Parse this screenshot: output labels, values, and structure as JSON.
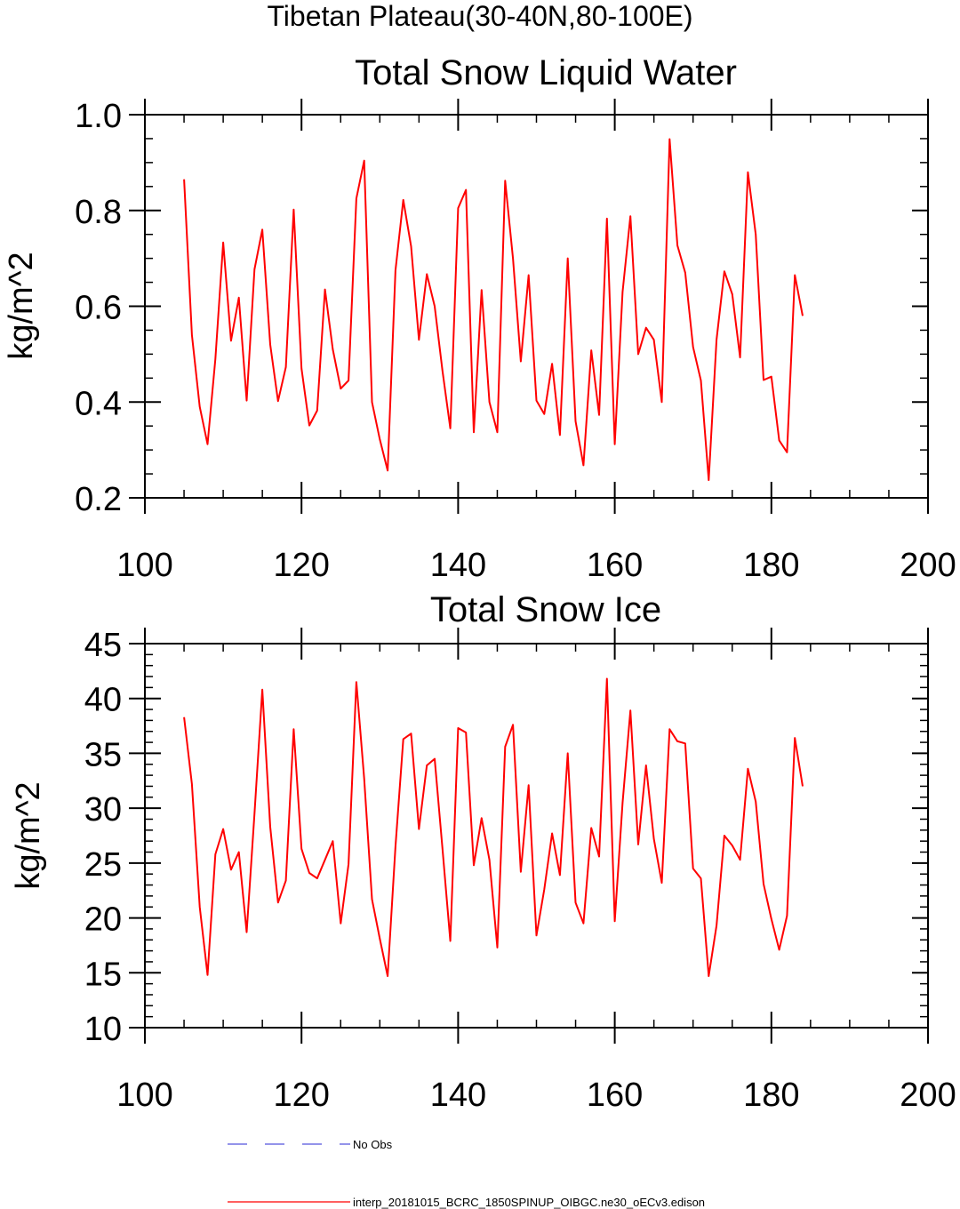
{
  "suptitle": "Tibetan Plateau(30-40N,80-100E)",
  "chart_data": [
    {
      "type": "line",
      "title": "Total Snow Liquid Water",
      "xlabel": "",
      "ylabel": "kg/m^2",
      "xlim": [
        100,
        200
      ],
      "ylim": [
        0.2,
        1.0
      ],
      "x_ticks": [
        100,
        120,
        140,
        160,
        180,
        200
      ],
      "y_ticks": [
        0.2,
        0.4,
        0.6,
        0.8,
        1.0
      ],
      "y_tick_labels": [
        "0.2",
        "0.4",
        "0.6",
        "0.8",
        "1.0"
      ],
      "grid": false,
      "x_start": 105,
      "x_step": 1,
      "series": [
        {
          "name": "interp_20181015_BCRC_1850SPINUP_OIBGC.ne30_oECv3.edison",
          "color": "#ff0000",
          "values": [
            0.865,
            0.54,
            0.39,
            0.312,
            0.49,
            0.733,
            0.528,
            0.618,
            0.403,
            0.677,
            0.76,
            0.52,
            0.402,
            0.473,
            0.802,
            0.47,
            0.351,
            0.382,
            0.635,
            0.51,
            0.428,
            0.445,
            0.825,
            0.904,
            0.4,
            0.322,
            0.257,
            0.675,
            0.822,
            0.725,
            0.53,
            0.667,
            0.6,
            0.465,
            0.345,
            0.805,
            0.843,
            0.337,
            0.634,
            0.4,
            0.337,
            0.862,
            0.7,
            0.485,
            0.665,
            0.403,
            0.375,
            0.48,
            0.331,
            0.7,
            0.36,
            0.268,
            0.508,
            0.373,
            0.783,
            0.312,
            0.63,
            0.788,
            0.5,
            0.555,
            0.53,
            0.4,
            0.949,
            0.727,
            0.67,
            0.515,
            0.445,
            0.237,
            0.53,
            0.673,
            0.625,
            0.493,
            0.88,
            0.75,
            0.446,
            0.453,
            0.32,
            0.295,
            0.665,
            0.58
          ]
        }
      ]
    },
    {
      "type": "line",
      "title": "Total Snow Ice",
      "xlabel": "",
      "ylabel": "kg/m^2",
      "xlim": [
        100,
        200
      ],
      "ylim": [
        10,
        45
      ],
      "x_ticks": [
        100,
        120,
        140,
        160,
        180,
        200
      ],
      "y_ticks": [
        10,
        15,
        20,
        25,
        30,
        35,
        40,
        45
      ],
      "y_tick_labels": [
        "10",
        "15",
        "20",
        "25",
        "30",
        "35",
        "40",
        "45"
      ],
      "grid": false,
      "x_start": 105,
      "x_step": 1,
      "series": [
        {
          "name": "interp_20181015_BCRC_1850SPINUP_OIBGC.ne30_oECv3.edison",
          "color": "#ff0000",
          "values": [
            38.3,
            32.2,
            21.0,
            14.8,
            25.8,
            28.1,
            24.4,
            26.0,
            18.7,
            29.5,
            40.8,
            28.3,
            21.4,
            23.4,
            37.2,
            26.3,
            24.1,
            23.6,
            25.3,
            27.0,
            19.5,
            24.9,
            41.5,
            32.7,
            21.7,
            18.1,
            14.7,
            26.5,
            36.3,
            36.8,
            28.1,
            33.9,
            34.5,
            26.3,
            17.9,
            37.3,
            36.9,
            24.8,
            29.1,
            25.3,
            17.3,
            35.6,
            37.6,
            24.2,
            32.1,
            18.4,
            22.6,
            27.7,
            23.9,
            35.0,
            21.4,
            19.5,
            28.2,
            25.6,
            41.8,
            19.7,
            30.5,
            38.9,
            26.7,
            33.9,
            27.2,
            23.2,
            37.2,
            36.1,
            35.9,
            24.5,
            23.6,
            14.7,
            19.3,
            27.5,
            26.6,
            25.3,
            33.6,
            30.6,
            23.1,
            19.9,
            17.1,
            20.2,
            36.4,
            32.0
          ]
        }
      ]
    }
  ],
  "legend": {
    "placement": "bottom",
    "entries": [
      {
        "label": "No Obs",
        "color": "#5555dd",
        "style": "dashed"
      },
      {
        "label": "interp_20181015_BCRC_1850SPINUP_OIBGC.ne30_oECv3.edison",
        "color": "#ff0000",
        "style": "solid"
      }
    ]
  }
}
